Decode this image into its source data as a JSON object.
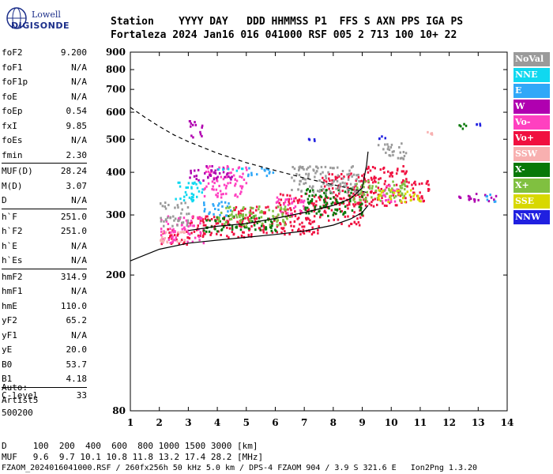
{
  "brand": {
    "line1": "Lowell",
    "line2": "DIGISONDE"
  },
  "header": {
    "row1": "Station    YYYY DAY   DDD HHMMSS P1  FFS S AXN PPS IGA PS",
    "row2": "Fortaleza 2024 Jan16 016 041000 RSF 005 2 713 100 10+ 22"
  },
  "params": [
    [
      {
        "k": "foF2",
        "v": "9.200"
      },
      {
        "k": "foF1",
        "v": "N/A"
      },
      {
        "k": "foF1p",
        "v": "N/A"
      },
      {
        "k": "foE",
        "v": "N/A"
      },
      {
        "k": "foEp",
        "v": "0.54"
      },
      {
        "k": "fxI",
        "v": "9.85"
      },
      {
        "k": "foEs",
        "v": "N/A"
      },
      {
        "k": "fmin",
        "v": "2.30"
      }
    ],
    [
      {
        "k": "MUF(D)",
        "v": "28.24"
      },
      {
        "k": "M(D)",
        "v": "3.07"
      },
      {
        "k": "D",
        "v": "N/A"
      }
    ],
    [
      {
        "k": "h`F",
        "v": "251.0"
      },
      {
        "k": "h`F2",
        "v": "251.0"
      },
      {
        "k": "h`E",
        "v": "N/A"
      },
      {
        "k": "h`Es",
        "v": "N/A"
      }
    ],
    [
      {
        "k": "hmF2",
        "v": "314.9"
      },
      {
        "k": "hmF1",
        "v": "N/A"
      },
      {
        "k": "hmE",
        "v": "110.0"
      },
      {
        "k": "yF2",
        "v": "65.2"
      },
      {
        "k": "yF1",
        "v": "N/A"
      },
      {
        "k": "yE",
        "v": "20.0"
      },
      {
        "k": "B0",
        "v": "53.7"
      },
      {
        "k": "B1",
        "v": "4.18"
      }
    ],
    [
      {
        "k": "C-level",
        "v": "33"
      }
    ]
  ],
  "auto": {
    "line1": "Auto:",
    "line2": "Artist5",
    "line3": "500200"
  },
  "footer": {
    "line1": "D     100  200  400  600  800 1000 1500 3000 [km]",
    "line2": "MUF   9.6  9.7 10.1 10.8 11.8 13.2 17.4 28.2 [MHz]",
    "line3": "FZAOM_2024016041000.RSF / 260fx256h 50 kHz 5.0 km / DPS-4 FZAOM 904 / 3.9 S 321.6 E   Ion2Png 1.3.20"
  },
  "legend": [
    {
      "label": "NoVal",
      "color": "#9a9a9a"
    },
    {
      "label": "NNE",
      "color": "#10d8f0"
    },
    {
      "label": "E",
      "color": "#30a8f8"
    },
    {
      "label": "W",
      "color": "#b000b0"
    },
    {
      "label": "Vo-",
      "color": "#ff40c0"
    },
    {
      "label": "Vo+",
      "color": "#f01040"
    },
    {
      "label": "SSW",
      "color": "#f8b0b0"
    },
    {
      "label": "X-",
      "color": "#087808"
    },
    {
      "label": "X+",
      "color": "#80c040"
    },
    {
      "label": "SSE",
      "color": "#d8d800"
    },
    {
      "label": "NNW",
      "color": "#2020e0"
    }
  ],
  "chart_data": {
    "type": "scatter",
    "title": "",
    "xlabel": "",
    "ylabel": "",
    "xlim": [
      1,
      14
    ],
    "ylim": [
      80,
      900
    ],
    "x_scale": "linear",
    "y_scale": "log",
    "x_ticks": [
      1,
      2,
      3,
      4,
      5,
      6,
      7,
      8,
      9,
      10,
      11,
      12,
      13,
      14
    ],
    "y_ticks": [
      80,
      200,
      300,
      400,
      500,
      600,
      700,
      800,
      900
    ],
    "grid": false,
    "legend_position": "right",
    "series": [
      {
        "name": "Vo+",
        "color": "#f01040",
        "clusters": [
          [
            2.0,
            3.0,
            245,
            275
          ],
          [
            3.0,
            4.5,
            255,
            300
          ],
          [
            4.5,
            6.0,
            260,
            320
          ],
          [
            6.0,
            7.5,
            265,
            350
          ],
          [
            7.5,
            9.0,
            280,
            400
          ],
          [
            9.0,
            10.5,
            320,
            420
          ],
          [
            10.5,
            11.3,
            330,
            380
          ]
        ]
      },
      {
        "name": "Vo-",
        "color": "#ff40c0",
        "clusters": [
          [
            2.0,
            3.5,
            250,
            300
          ],
          [
            3.5,
            5.0,
            340,
            420
          ],
          [
            6.0,
            7.0,
            300,
            340
          ],
          [
            9.5,
            10.2,
            330,
            370
          ]
        ]
      },
      {
        "name": "W",
        "color": "#b000b0",
        "clusters": [
          [
            3.0,
            4.5,
            380,
            420
          ],
          [
            3.0,
            3.5,
            510,
            570
          ],
          [
            12.3,
            13.6,
            330,
            350
          ]
        ]
      },
      {
        "name": "E",
        "color": "#30a8f8",
        "clusters": [
          [
            5.0,
            6.0,
            390,
            415
          ],
          [
            3.5,
            4.5,
            300,
            330
          ],
          [
            13.2,
            13.6,
            330,
            350
          ]
        ]
      },
      {
        "name": "NNE",
        "color": "#10d8f0",
        "clusters": [
          [
            2.5,
            3.5,
            330,
            380
          ],
          [
            4.0,
            5.0,
            405,
            415
          ]
        ]
      },
      {
        "name": "X-",
        "color": "#087808",
        "clusters": [
          [
            3.5,
            6.0,
            270,
            300
          ],
          [
            7.0,
            9.0,
            300,
            360
          ],
          [
            12.3,
            12.7,
            530,
            560
          ]
        ]
      },
      {
        "name": "X+",
        "color": "#80c040",
        "clusters": [
          [
            4.0,
            6.5,
            280,
            320
          ],
          [
            8.5,
            10.5,
            330,
            380
          ]
        ]
      },
      {
        "name": "SSE",
        "color": "#d8d800",
        "clusters": [
          [
            9.5,
            11.0,
            330,
            360
          ]
        ]
      },
      {
        "name": "SSW",
        "color": "#f8b0b0",
        "clusters": [
          [
            2.0,
            3.0,
            250,
            270
          ],
          [
            11.2,
            11.4,
            520,
            530
          ]
        ]
      },
      {
        "name": "NoVal",
        "color": "#9a9a9a",
        "clusters": [
          [
            2.0,
            3.0,
            280,
            330
          ],
          [
            6.5,
            9.0,
            350,
            420
          ],
          [
            9.5,
            10.5,
            440,
            490
          ]
        ]
      },
      {
        "name": "NNW",
        "color": "#2020e0",
        "clusters": [
          [
            7.0,
            7.5,
            495,
            505
          ],
          [
            9.5,
            9.8,
            505,
            515
          ],
          [
            12.9,
            13.1,
            540,
            560
          ]
        ]
      }
    ],
    "lines": [
      {
        "name": "profile",
        "style": "solid",
        "points": [
          [
            1.0,
            220
          ],
          [
            2.0,
            238
          ],
          [
            3.0,
            248
          ],
          [
            4.0,
            253
          ],
          [
            5.0,
            258
          ],
          [
            6.0,
            263
          ],
          [
            7.0,
            269
          ],
          [
            8.0,
            280
          ],
          [
            8.6,
            292
          ],
          [
            9.0,
            305
          ],
          [
            9.2,
            320
          ]
        ]
      },
      {
        "name": "profile-upper",
        "style": "solid",
        "points": [
          [
            3.0,
            270
          ],
          [
            4.0,
            278
          ],
          [
            5.0,
            283
          ],
          [
            6.0,
            293
          ],
          [
            7.0,
            305
          ],
          [
            8.0,
            320
          ],
          [
            8.6,
            335
          ],
          [
            9.0,
            360
          ],
          [
            9.15,
            420
          ],
          [
            9.2,
            460
          ]
        ]
      },
      {
        "name": "muf-envelope",
        "style": "dashed",
        "points": [
          [
            1.0,
            620
          ],
          [
            1.5,
            580
          ],
          [
            2.0,
            545
          ],
          [
            2.5,
            515
          ],
          [
            3.0,
            492
          ],
          [
            4.0,
            455
          ],
          [
            5.0,
            427
          ],
          [
            6.0,
            405
          ],
          [
            7.0,
            385
          ],
          [
            8.0,
            368
          ],
          [
            9.0,
            352
          ],
          [
            9.2,
            348
          ]
        ]
      }
    ]
  }
}
